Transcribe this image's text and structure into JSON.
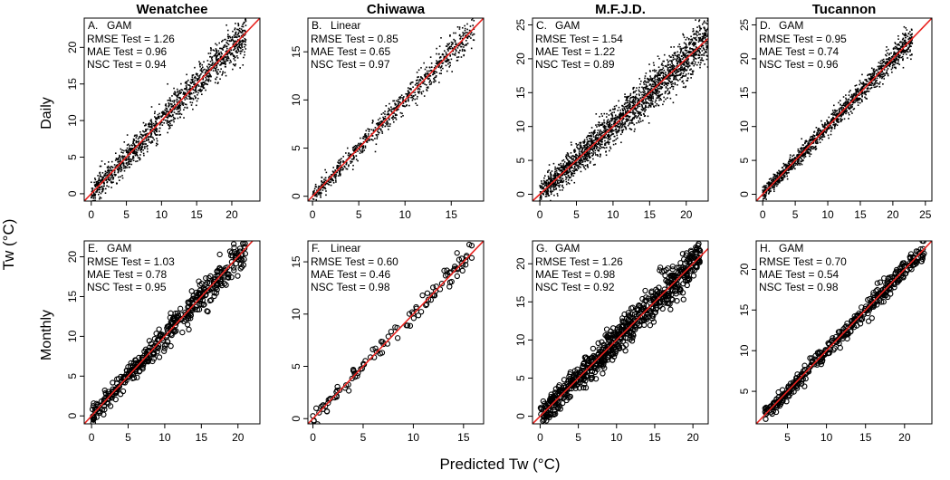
{
  "figure": {
    "xlabel": "Predicted Tw (°C)",
    "ylabel": "Tw (°C)",
    "row_labels": [
      "Daily",
      "Monthly"
    ],
    "column_titles": [
      "Wenatchee",
      "Chiwawa",
      "M.F.J.D.",
      "Tucannon"
    ],
    "colors": {
      "points": "#000000",
      "fit_line": "#e8231f"
    }
  },
  "chart_data": [
    {
      "type": "scatter",
      "id": "A",
      "title": "Wenatchee",
      "row": "Daily",
      "label": "A.",
      "model": "GAM",
      "stats": [
        "RMSE Test = 1.26",
        "MAE Test = 0.96",
        "NSC Test = 0.94"
      ],
      "xlim": [
        -1,
        24
      ],
      "ylim": [
        -1,
        24
      ],
      "xticks": [
        0,
        5,
        10,
        15,
        20
      ],
      "yticks": [
        0,
        5,
        10,
        15,
        20
      ],
      "range": [
        0,
        22
      ],
      "spread": 1.3,
      "n_points": 1400,
      "marker": "dot",
      "seed": 11
    },
    {
      "type": "scatter",
      "id": "B",
      "title": "Chiwawa",
      "row": "Daily",
      "label": "B.",
      "model": "Linear",
      "stats": [
        "RMSE Test = 0.85",
        "MAE Test = 0.65",
        "NSC Test = 0.97"
      ],
      "xlim": [
        -0.5,
        18.5
      ],
      "ylim": [
        -0.5,
        18.5
      ],
      "xticks": [
        0,
        5,
        10,
        15
      ],
      "yticks": [
        0,
        5,
        10,
        15
      ],
      "range": [
        0,
        17.5
      ],
      "spread": 0.75,
      "n_points": 850,
      "marker": "dot",
      "seed": 23
    },
    {
      "type": "scatter",
      "id": "C",
      "title": "M.F.J.D.",
      "row": "Daily",
      "label": "C.",
      "model": "GAM",
      "stats": [
        "RMSE Test = 1.54",
        "MAE Test = 1.22",
        "NSC Test = 0.89"
      ],
      "xlim": [
        -1,
        23
      ],
      "ylim": [
        -1,
        26
      ],
      "xticks": [
        0,
        5,
        10,
        15,
        20
      ],
      "yticks": [
        0,
        5,
        10,
        15,
        20,
        25
      ],
      "range": [
        0,
        23
      ],
      "spread": 1.6,
      "n_points": 2200,
      "marker": "dot",
      "seed": 37
    },
    {
      "type": "scatter",
      "id": "D",
      "title": "Tucannon",
      "row": "Daily",
      "label": "D.",
      "model": "GAM",
      "stats": [
        "RMSE Test = 0.95",
        "MAE Test = 0.74",
        "NSC Test = 0.96"
      ],
      "xlim": [
        -1,
        26
      ],
      "ylim": [
        -1,
        26
      ],
      "xticks": [
        0,
        5,
        10,
        15,
        20,
        25
      ],
      "yticks": [
        0,
        5,
        10,
        15,
        20,
        25
      ],
      "range": [
        0,
        23
      ],
      "spread": 0.85,
      "n_points": 1500,
      "marker": "dot",
      "seed": 41
    },
    {
      "type": "scatter",
      "id": "E",
      "title": "Wenatchee",
      "row": "Monthly",
      "label": "E.",
      "model": "GAM",
      "stats": [
        "RMSE Test = 1.03",
        "MAE Test = 0.78",
        "NSC Test = 0.95"
      ],
      "xlim": [
        -1,
        23
      ],
      "ylim": [
        -1,
        22
      ],
      "xticks": [
        0,
        5,
        10,
        15,
        20
      ],
      "yticks": [
        0,
        5,
        10,
        15,
        20
      ],
      "range": [
        0,
        21
      ],
      "spread": 1.0,
      "n_points": 420,
      "marker": "circle",
      "seed": 53
    },
    {
      "type": "scatter",
      "id": "F",
      "title": "Chiwawa",
      "row": "Monthly",
      "label": "F.",
      "model": "Linear",
      "stats": [
        "RMSE Test = 0.60",
        "MAE Test = 0.46",
        "NSC Test = 0.98"
      ],
      "xlim": [
        -0.5,
        17
      ],
      "ylim": [
        -0.5,
        17
      ],
      "xticks": [
        0,
        5,
        10,
        15
      ],
      "yticks": [
        0,
        5,
        10,
        15
      ],
      "range": [
        0,
        16
      ],
      "spread": 0.55,
      "n_points": 110,
      "marker": "circle",
      "seed": 67
    },
    {
      "type": "scatter",
      "id": "G",
      "title": "M.F.J.D.",
      "row": "Monthly",
      "label": "G.",
      "model": "GAM",
      "stats": [
        "RMSE Test = 1.26",
        "MAE Test = 0.98",
        "NSC Test = 0.92"
      ],
      "xlim": [
        -1,
        22
      ],
      "ylim": [
        -1,
        23
      ],
      "xticks": [
        0,
        5,
        10,
        15,
        20
      ],
      "yticks": [
        0,
        5,
        10,
        15,
        20
      ],
      "range": [
        0,
        21
      ],
      "spread": 1.25,
      "n_points": 650,
      "marker": "circle",
      "seed": 79
    },
    {
      "type": "scatter",
      "id": "H",
      "title": "Tucannon",
      "row": "Monthly",
      "label": "H.",
      "model": "GAM",
      "stats": [
        "RMSE Test = 0.70",
        "MAE Test = 0.54",
        "NSC Test = 0.98"
      ],
      "xlim": [
        1,
        23.5
      ],
      "ylim": [
        1,
        23.5
      ],
      "xticks": [
        5,
        10,
        15,
        20
      ],
      "yticks": [
        5,
        10,
        15,
        20
      ],
      "range": [
        2,
        22.5
      ],
      "spread": 0.65,
      "n_points": 380,
      "marker": "circle",
      "seed": 83
    }
  ]
}
